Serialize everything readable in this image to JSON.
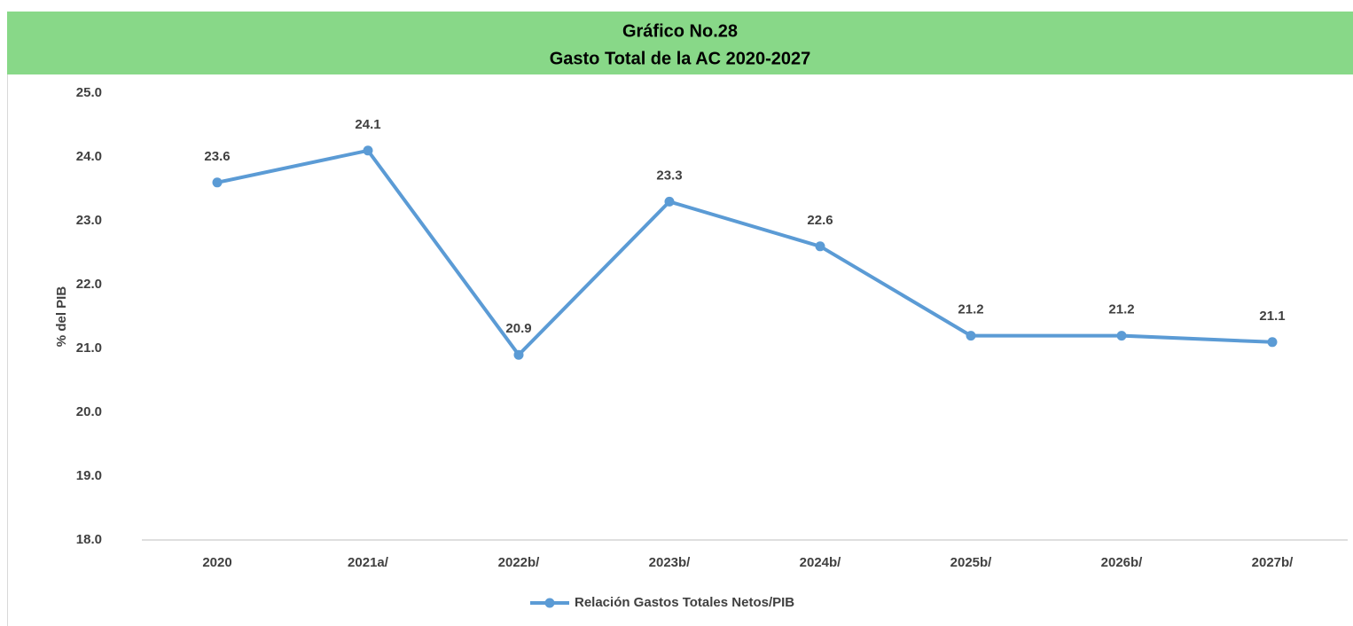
{
  "chart_data": {
    "type": "line",
    "title": "Gráfico No.28",
    "subtitle": "Gasto Total de la AC 2020-2027",
    "y_label": "% del PIB",
    "categories": [
      "2020",
      "2021a/",
      "2022b/",
      "2023b/",
      "2024b/",
      "2025b/",
      "2026b/",
      "2027b/"
    ],
    "series": [
      {
        "name": "Relación Gastos Totales Netos/PIB",
        "color": "#5b9bd5",
        "values": [
          23.6,
          24.1,
          20.9,
          23.3,
          22.6,
          21.2,
          21.2,
          21.1
        ]
      }
    ],
    "ylim": [
      18,
      25
    ],
    "yticks": [
      {
        "value": 18,
        "label": "18.0"
      },
      {
        "value": 19,
        "label": "19.0"
      },
      {
        "value": 20,
        "label": "20.0"
      },
      {
        "value": 21,
        "label": "21.0"
      },
      {
        "value": 22,
        "label": "22.0"
      },
      {
        "value": 23,
        "label": "23.0"
      },
      {
        "value": 24,
        "label": "24.0"
      },
      {
        "value": 25,
        "label": "25.0"
      }
    ],
    "grid": false,
    "legend": "bottom"
  }
}
